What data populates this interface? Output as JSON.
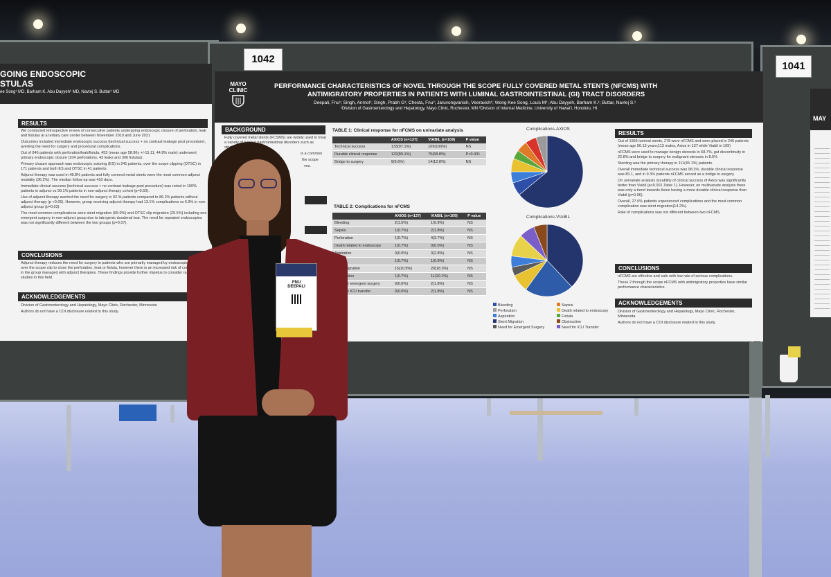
{
  "left_poster": {
    "title_partial_1": "GOING ENDOSCOPIC",
    "title_partial_2": "STULAS",
    "authors_partial": "ee Song¹ MD, Barham K. Abu Dayyeh¹ MD, Navtej S. Buttar¹ MD",
    "results_heading": "RESULTS",
    "results_items": [
      "We conducted retrospective review of consecutive patients undergoing endoscopic closure of perforation, leak and fistulas at a tertiary care center between November 2010 and June 2021",
      "Outcomes included immediate endoscopic success (technical success + no contrast leakage post procedure), averting the need for surgery and procedural complications.",
      "Out of 846 patients with perforation/leak/fistula, 453 (mean age 58.86y +/-15.11; 44.8% male) underwent primary endoscopic closure (104 perforations, 43 leaks and 306 fistulas).",
      "Primary closure approach was endoscopic suturing (ES) in 241 patients, over the scope clipping (OTSC) in 171 patients and both ES and OTSC in 41 patients.",
      "Adjunct therapy was used in 48.8% patients and fully covered metal stents were the most common adjunct modality (36.2%). The median follow up was 410 days.",
      "Immediate clinical success (technical success + no contrast leakage post procedure) was noted in 100% patients in adjunct vs 99.1% patients in non-adjunct therapy cohort (p=0.50).",
      "Use of adjunct therapy averted the need for surgery in 92.% patients compared to 86.2% patients without adjunct therapy (p <0.05). However, group receiving adjunct therapy had 13.1% complications vs 6.9% in non-adjunct group (p=0.03).",
      "The most common complications were stent migration (66.0%) and OTSC clip migration (25.5%) including one emergent surgery in non-adjunct group due to iatrogenic duodenal tear. The need for repeated endoscopies was not significantly different between the two groups (p=0.07)."
    ],
    "conclusions_heading": "CONCLUSIONS",
    "conclusions_items": [
      "Adjunct therapy reduces the need for surgery in patients who are primarily managed by endoscopic suturing or over the scope clip to close the perforation, leak or fistula, however there is an increased risk of complications in the group managed with adjunct therapies. These findings provide further impetus to consider randomized studies in this field."
    ],
    "ack_heading": "ACKNOWLEDGEMENTS",
    "ack_items": [
      "Division of Gastroenterology and Hepatology, Mayo Clinic, Rochester, Minnesota",
      "Authors do not have a COI disclosure related to this study."
    ]
  },
  "board_number_center": "1042",
  "board_number_right": "1041",
  "main_poster": {
    "logo_line1": "MAYO",
    "logo_line2": "CLINIC",
    "title_line1": "PERFORMANCE CHARACTERISTICS OF NOVEL THROUGH THE SCOPE FULLY COVERED METAL STENTS (NFCMS) WITH",
    "title_line2": "ANTIMIGRATORY PROPERTIES IN PATIENTS WITH LUMINAL GASTROINTESTINAL (GI) TRACT DISORDERS",
    "authors": "Deepali, Fnu¹; Singh, Anmol¹; Singh, Prabh G¹; Chesta, Fnu²; Jaruvongvanich, Veeravich¹; Wong Kee Song, Louis M¹; Abu Dayyeh, Barham K.¹; Buttar, Navtej S.¹",
    "affiliations": "¹Division of Gastroenterology and Hepatology, Mayo Clinic, Rochester, MN ²Division of Internal Medicine, University of Hawai'i, Honolulu, HI",
    "background_heading": "BACKGROUND",
    "background_items": [
      "Fully covered metal stents (FCSMS) are widely used to treat a variety of luminal gastrointestinal disorders such as strictures as well",
      "is a common",
      "the scope",
      "ves."
    ],
    "table1": {
      "caption": "TABLE 1: Clinical response for nFCMS on univariate analysis",
      "headers": [
        "",
        "AXIOS (n=137)",
        "VIABIL (n=109)",
        "P value"
      ],
      "rows": [
        [
          "Technical success",
          "133(97.1%)",
          "109(100%)",
          "NS"
        ],
        [
          "Durable clinical response",
          "122(89.1%)",
          "75(68.8%)",
          "P<0.001"
        ],
        [
          "Bridge to surgery",
          "9(6.6%)",
          "14(12.8%)",
          "NS"
        ]
      ]
    },
    "table2": {
      "caption": "TABLE 2: Complications for nFCMS",
      "headers": [
        "",
        "AXIOS (n=137)",
        "VIABIL (n=109)",
        "P value"
      ],
      "rows": [
        [
          "Bleeding",
          "2(1.5%)",
          "1(0.9%)",
          "NS"
        ],
        [
          "Sepsis",
          "1(0.7%)",
          "2(1.8%)",
          "NS"
        ],
        [
          "Perforation",
          "1(0.7%)",
          "4(3.7%)",
          "NS"
        ],
        [
          "Death related to endoscopy",
          "1(0.7%)",
          "0(0.0%)",
          "NS"
        ],
        [
          "Aspiration",
          "0(0.0%)",
          "3(2.8%)",
          "NS"
        ],
        [
          "Fistula",
          "1(0.7%)",
          "1(0.9%)",
          "NS"
        ],
        [
          "Stent migration",
          "15(10.9%)",
          "20(18.3%)",
          "NS"
        ],
        [
          "Obstruction",
          "1(0.7%)",
          "11(10.1%)",
          "NS"
        ],
        [
          "Need for emergent surgery",
          "0(0.0%)",
          "2(1.8%)",
          "NS"
        ],
        [
          "Need for ICU transfer",
          "0(0.0%)",
          "2(1.8%)",
          "NS"
        ]
      ]
    },
    "pie1_title": "Complications-AXIOS",
    "pie2_title": "Complications-VIABIL",
    "legend": [
      {
        "label": "Bleeding",
        "color": "#2e4fa8"
      },
      {
        "label": "Sepsis",
        "color": "#e07b2a"
      },
      {
        "label": "Perforation",
        "color": "#9a9a9a"
      },
      {
        "label": "Death related to endoscopy",
        "color": "#e8c230"
      },
      {
        "label": "Aspiration",
        "color": "#3c7ed8"
      },
      {
        "label": "Fistula",
        "color": "#5aa83c"
      },
      {
        "label": "Stent Migration",
        "color": "#24356e"
      },
      {
        "label": "Obstruction",
        "color": "#8a4a1c"
      },
      {
        "label": "Need for Emergent Surgery",
        "color": "#5a5a5a"
      },
      {
        "label": "Need for ICU Transfer",
        "color": "#7a5fc8"
      }
    ],
    "results_heading": "RESULTS",
    "results_items": [
      "Out of 1955 luminal stents, 278 were nFCMS and were placed in 246 patients (mean age 56.13 years;113 males, Axios in 137 while Viabil in 109)",
      "nFCMS were used to manage benign stenosis in 68.7%, gut discontinuity in 22.8% and bridge to surgery for malignant stenosis in 8.5%",
      "Stenting was the primary therapy in 111(45.1%) patients.",
      "Overall immediate technical success was 98.3%, durable clinical response was 80.1, and in 9.3% patients nFCMS served as a bridge to surgery.",
      "On univariate analysis durability of clinical success of Axios was significantly better than Viabil (p<0.001,Table 1). However, on multivariate analysis there was only a trend towards Axios having a more durable clinical response than Viabil (p=0.06).",
      "Overall, 27.6% patients experienced complications and the most common complication was stent migration(14.2%).",
      "Rate of complications was not different between two nFCMS."
    ],
    "conclusions_heading": "CONCLUSIONS",
    "conclusions_items": [
      "nFCMS are effective and safe with low rate of serious complications.",
      "These 2 through the scope nFCMS with antimigratory properties have similar performance characteristics."
    ],
    "ack_heading": "ACKNOWLEDGEMENTS",
    "ack_items": [
      "Division of Gastroenterology and Hepatology, Mayo Clinic, Rochester, Minnesota",
      "Authors do not have a COI disclosure related to this study."
    ]
  },
  "right_poster": {
    "logo_partial": "MAY"
  },
  "badge": {
    "first_line": "FNU",
    "second_line": "DEEPALI"
  },
  "pie_axios": [
    {
      "color": "#24356e",
      "value": 64
    },
    {
      "color": "#2e4fa8",
      "value": 6
    },
    {
      "color": "#3c7ed8",
      "value": 5
    },
    {
      "color": "#e8c230",
      "value": 6
    },
    {
      "color": "#5aa83c",
      "value": 4
    },
    {
      "color": "#e07b2a",
      "value": 5
    },
    {
      "color": "#d8342a",
      "value": 5
    },
    {
      "color": "#9a9a9a",
      "value": 5
    }
  ],
  "pie_viabil": [
    {
      "color": "#24356e",
      "value": 38
    },
    {
      "color": "#2e5ca8",
      "value": 22
    },
    {
      "color": "#e8c230",
      "value": 8
    },
    {
      "color": "#5a5a5a",
      "value": 4
    },
    {
      "color": "#3c7ed8",
      "value": 5
    },
    {
      "color": "#e8d24a",
      "value": 10
    },
    {
      "color": "#7a5fc8",
      "value": 7
    },
    {
      "color": "#8a4a1c",
      "value": 6
    }
  ]
}
